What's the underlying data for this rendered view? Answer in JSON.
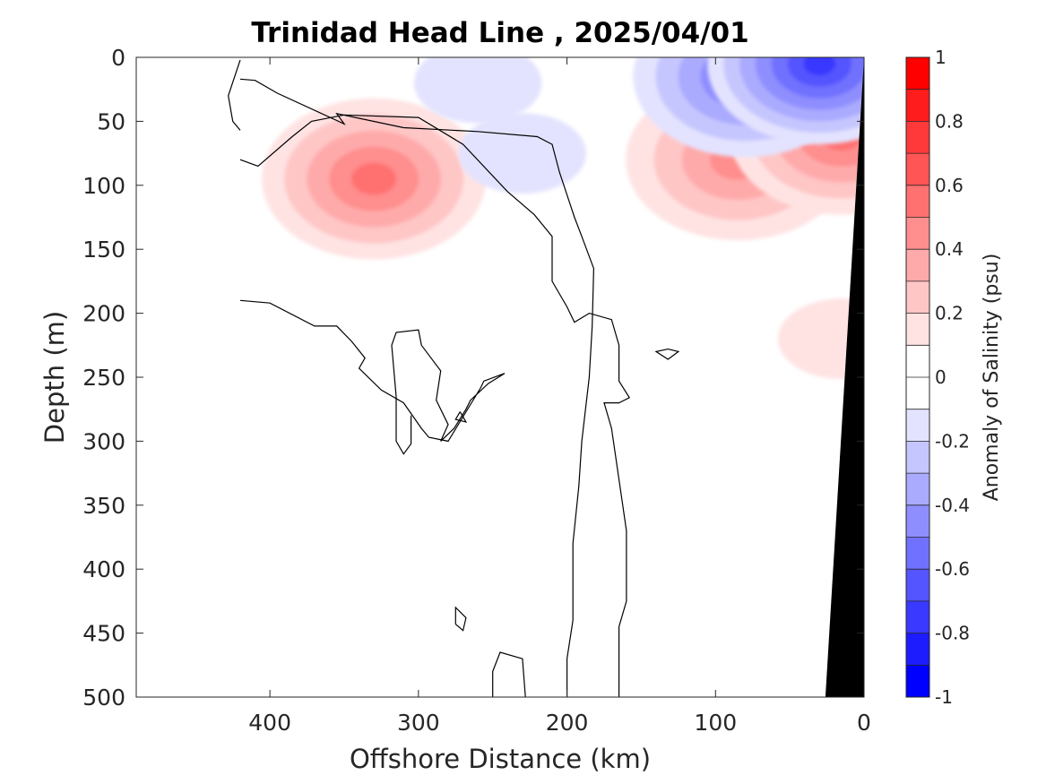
{
  "chart_data": {
    "type": "heatmap",
    "title": "Trinidad Head Line , 2025/04/01",
    "xlabel": "Offshore Distance (km)",
    "ylabel": "Depth (m)",
    "xlim": [
      490,
      0
    ],
    "ylim": [
      500,
      0
    ],
    "x_reversed": true,
    "y_reversed": true,
    "x_ticks": [
      400,
      300,
      200,
      100,
      0
    ],
    "x_tick_labels": [
      "400",
      "300",
      "200",
      "100",
      "0"
    ],
    "y_ticks": [
      0,
      50,
      100,
      150,
      200,
      250,
      300,
      350,
      400,
      450,
      500
    ],
    "y_tick_labels": [
      "0",
      "50",
      "100",
      "150",
      "200",
      "250",
      "300",
      "350",
      "400",
      "450",
      "500"
    ],
    "colorbar": {
      "label": "Anomaly of Salinity (psu)",
      "range": [
        -1,
        1
      ],
      "step": 0.1,
      "ticks": [
        1,
        0.8,
        0.6,
        0.4,
        0.2,
        0,
        -0.2,
        -0.4,
        -0.6,
        -0.8,
        -1
      ],
      "tick_labels": [
        "1",
        "0.8",
        "0.6",
        "0.4",
        "0.2",
        "0",
        "-0.2",
        "-0.4",
        "-0.6",
        "-0.8",
        "-1"
      ],
      "colormap": "blue-white-red"
    },
    "anomaly_features": [
      {
        "x_km": 330,
        "depth_m": 95,
        "peak": 0.5
      },
      {
        "x_km": 85,
        "depth_m": 80,
        "peak": 0.4
      },
      {
        "x_km": 15,
        "depth_m": 60,
        "peak": 0.5
      },
      {
        "x_km": 15,
        "depth_m": 220,
        "peak": 0.1
      },
      {
        "x_km": 260,
        "depth_m": 20,
        "peak": -0.1
      },
      {
        "x_km": 230,
        "depth_m": 75,
        "peak": -0.1
      },
      {
        "x_km": 80,
        "depth_m": 15,
        "peak": -0.5
      },
      {
        "x_km": 30,
        "depth_m": 5,
        "peak": -0.7
      }
    ],
    "zero_contours": [
      [
        [
          420,
          57
        ],
        [
          425,
          50
        ],
        [
          428,
          30
        ],
        [
          420,
          2
        ]
      ],
      [
        [
          420,
          80
        ],
        [
          408,
          85
        ],
        [
          385,
          62
        ],
        [
          372,
          50
        ],
        [
          350,
          45
        ],
        [
          300,
          47
        ],
        [
          270,
          68
        ],
        [
          240,
          105
        ],
        [
          222,
          123
        ],
        [
          210,
          140
        ],
        [
          210,
          175
        ],
        [
          200,
          195
        ],
        [
          195,
          207
        ],
        [
          185,
          200
        ],
        [
          170,
          205
        ],
        [
          165,
          225
        ],
        [
          165,
          253
        ],
        [
          158,
          266
        ],
        [
          165,
          270
        ],
        [
          175,
          270
        ],
        [
          170,
          290
        ],
        [
          165,
          330
        ],
        [
          160,
          370
        ],
        [
          160,
          425
        ],
        [
          165,
          445
        ],
        [
          165,
          500
        ]
      ],
      [
        [
          228,
          500
        ],
        [
          230,
          470
        ],
        [
          245,
          465
        ],
        [
          250,
          480
        ],
        [
          250,
          500
        ]
      ],
      [
        [
          200,
          500
        ],
        [
          200,
          470
        ],
        [
          196,
          440
        ],
        [
          196,
          380
        ],
        [
          192,
          335
        ],
        [
          190,
          300
        ],
        [
          185,
          250
        ],
        [
          183,
          210
        ],
        [
          182,
          165
        ],
        [
          190,
          140
        ],
        [
          195,
          125
        ],
        [
          205,
          90
        ],
        [
          210,
          68
        ],
        [
          220,
          62
        ],
        [
          260,
          58
        ],
        [
          310,
          55
        ],
        [
          355,
          44
        ],
        [
          350,
          52
        ],
        [
          395,
          28
        ],
        [
          410,
          18
        ],
        [
          420,
          17
        ]
      ],
      [
        [
          420,
          190
        ],
        [
          400,
          192
        ],
        [
          370,
          210
        ],
        [
          355,
          210
        ],
        [
          345,
          222
        ],
        [
          336,
          235
        ],
        [
          340,
          243
        ],
        [
          325,
          260
        ],
        [
          310,
          270
        ],
        [
          298,
          290
        ],
        [
          293,
          297
        ],
        [
          280,
          300
        ],
        [
          258,
          258
        ],
        [
          256,
          253
        ],
        [
          242,
          247
        ],
        [
          253,
          255
        ],
        [
          265,
          268
        ],
        [
          268,
          275
        ],
        [
          276,
          290
        ],
        [
          285,
          300
        ],
        [
          280,
          287
        ],
        [
          288,
          268
        ],
        [
          285,
          245
        ],
        [
          298,
          225
        ],
        [
          300,
          213
        ],
        [
          315,
          215
        ],
        [
          318,
          225
        ],
        [
          315,
          265
        ],
        [
          315,
          300
        ],
        [
          310,
          310
        ],
        [
          305,
          302
        ],
        [
          305,
          280
        ]
      ],
      [
        [
          132,
          228
        ],
        [
          125,
          230
        ],
        [
          132,
          236
        ],
        [
          140,
          230
        ],
        [
          132,
          228
        ]
      ],
      [
        [
          272,
          277
        ],
        [
          268,
          285
        ],
        [
          275,
          283
        ],
        [
          272,
          277
        ]
      ],
      [
        [
          275,
          443
        ],
        [
          270,
          448
        ],
        [
          268,
          438
        ],
        [
          275,
          430
        ],
        [
          275,
          443
        ]
      ]
    ],
    "land_region": [
      [
        0,
        0
      ],
      [
        26,
        500
      ],
      [
        0,
        500
      ]
    ]
  }
}
